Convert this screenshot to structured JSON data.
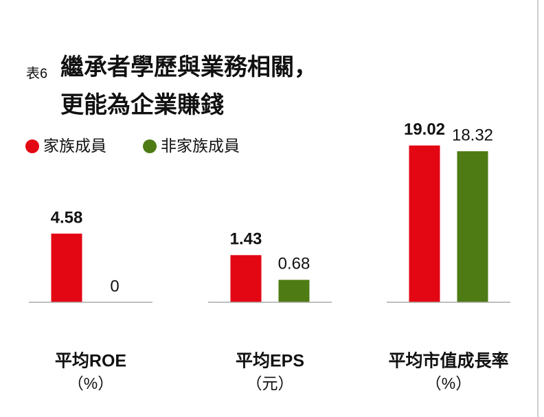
{
  "label": "表6",
  "title": [
    "繼承者學歷與業務相關，",
    "更能為企業賺錢"
  ],
  "chart_data": [
    {
      "type": "bar",
      "title": "平均ROE",
      "unit": "（%）",
      "ylim": [
        0,
        11
      ],
      "series": [
        {
          "name": "家族成員",
          "color": "#e30613",
          "values": [
            4.58
          ]
        },
        {
          "name": "非家族成員",
          "color": "#4e7b14",
          "values": [
            0
          ]
        }
      ]
    },
    {
      "type": "bar",
      "title": "平均EPS",
      "unit": "（元）",
      "ylim": [
        0,
        5
      ],
      "series": [
        {
          "name": "家族成員",
          "color": "#e30613",
          "values": [
            1.43
          ]
        },
        {
          "name": "非家族成員",
          "color": "#4e7b14",
          "values": [
            0.68
          ]
        }
      ]
    },
    {
      "type": "bar",
      "title": "平均市值成長率",
      "unit": "（%）",
      "ylim": [
        0,
        20
      ],
      "series": [
        {
          "name": "家族成員",
          "color": "#e30613",
          "values": [
            19.02
          ]
        },
        {
          "name": "非家族成員",
          "color": "#4e7b14",
          "values": [
            18.32
          ]
        }
      ]
    }
  ]
}
